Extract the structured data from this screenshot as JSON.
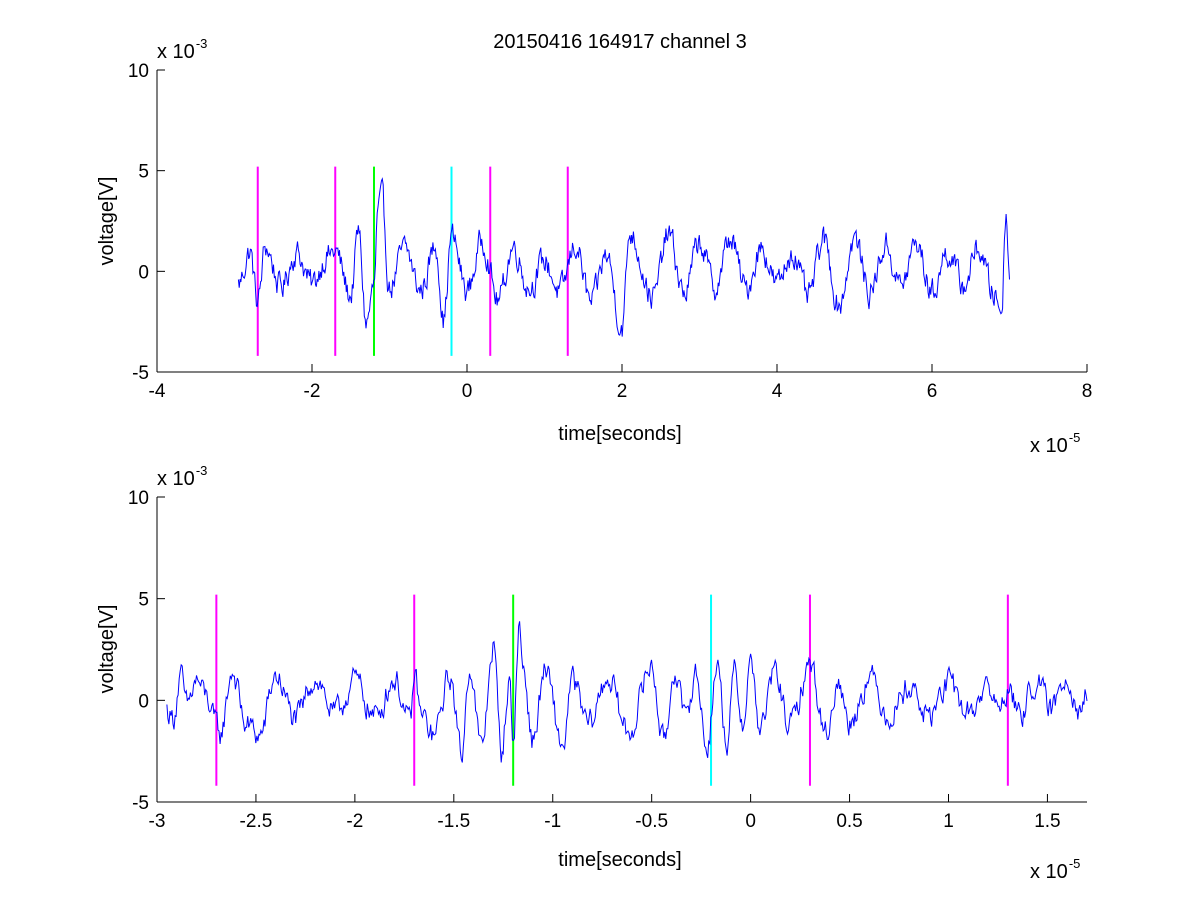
{
  "title": "20150416 164917 channel 3",
  "colors": {
    "signal": "#0000ff",
    "marker_magenta": "#ff00ff",
    "marker_green": "#00ff00",
    "marker_cyan": "#00ffff",
    "axes": "#000000",
    "background": "#ffffff"
  },
  "chart_data": [
    {
      "type": "line",
      "title": "20150416 164917 channel 3",
      "xlabel": "time[seconds]",
      "ylabel": "voltage[V]",
      "x_multiplier": "x 10",
      "x_exponent": "-5",
      "y_multiplier": "x 10",
      "y_exponent": "-3",
      "xlim": [
        -4,
        8
      ],
      "ylim": [
        -5,
        10
      ],
      "x_ticks": [
        -4,
        -2,
        0,
        2,
        4,
        6,
        8
      ],
      "x_tick_labels": [
        "-4",
        "-2",
        "0",
        "2",
        "4",
        "6",
        "8"
      ],
      "y_ticks": [
        -5,
        0,
        5,
        10
      ],
      "y_tick_labels": [
        "-5",
        "0",
        "5",
        "10"
      ],
      "series": [
        {
          "color": "#0000ff",
          "x_range": [
            -2.95,
            7.0
          ],
          "x": [
            -2.95,
            -2.8,
            -2.7,
            -2.6,
            -2.4,
            -2.2,
            -2.0,
            -1.8,
            -1.7,
            -1.5,
            -1.4,
            -1.3,
            -1.2,
            -1.15,
            -1.1,
            -1.0,
            -0.8,
            -0.6,
            -0.4,
            -0.3,
            -0.2,
            0.0,
            0.2,
            0.4,
            0.6,
            0.8,
            1.0,
            1.2,
            1.4,
            1.6,
            1.8,
            2.0,
            2.1,
            2.4,
            2.6,
            2.8,
            3.0,
            3.2,
            3.4,
            3.6,
            3.8,
            4.0,
            4.2,
            4.4,
            4.6,
            4.8,
            5.0,
            5.2,
            5.4,
            5.6,
            5.8,
            6.0,
            6.2,
            6.4,
            6.6,
            6.8,
            6.9,
            6.95,
            7.0
          ],
          "y": [
            -0.8,
            1.2,
            -1.9,
            1.5,
            -1.0,
            1.2,
            -0.8,
            1.0,
            1.2,
            -1.5,
            2.4,
            -3.2,
            -1.0,
            3.6,
            4.5,
            -1.0,
            1.4,
            -1.2,
            1.6,
            -3.0,
            2.2,
            -1.2,
            1.9,
            -1.8,
            1.5,
            -1.0,
            0.6,
            -1.3,
            1.6,
            -2.0,
            1.0,
            -3.5,
            2.4,
            -1.6,
            2.3,
            -1.4,
            1.8,
            -1.0,
            2.0,
            -1.1,
            1.5,
            -0.8,
            1.2,
            -1.6,
            1.9,
            -2.1,
            2.0,
            -1.3,
            1.6,
            -0.9,
            1.7,
            -1.3,
            1.2,
            -0.9,
            1.4,
            -1.4,
            -2.4,
            3.6,
            0.2
          ]
        }
      ],
      "markers": [
        {
          "x": -2.7,
          "color": "#ff00ff",
          "y_range": [
            -4.2,
            5.2
          ]
        },
        {
          "x": -1.7,
          "color": "#ff00ff",
          "y_range": [
            -4.2,
            5.2
          ]
        },
        {
          "x": -1.2,
          "color": "#00ff00",
          "y_range": [
            -4.2,
            5.2
          ]
        },
        {
          "x": -0.2,
          "color": "#00ffff",
          "y_range": [
            -4.2,
            5.2
          ]
        },
        {
          "x": 0.3,
          "color": "#ff00ff",
          "y_range": [
            -4.2,
            5.2
          ]
        },
        {
          "x": 1.3,
          "color": "#ff00ff",
          "y_range": [
            -4.2,
            5.2
          ]
        }
      ],
      "grid": false
    },
    {
      "type": "line",
      "title": "",
      "xlabel": "time[seconds]",
      "ylabel": "voltage[V]",
      "x_multiplier": "x 10",
      "x_exponent": "-5",
      "y_multiplier": "x 10",
      "y_exponent": "-3",
      "xlim": [
        -3.0,
        1.7
      ],
      "ylim": [
        -5,
        10
      ],
      "x_ticks": [
        -3,
        -2.5,
        -2,
        -1.5,
        -1,
        -0.5,
        0,
        0.5,
        1,
        1.5
      ],
      "x_tick_labels": [
        "-3",
        "-2.5",
        "-2",
        "-1.5",
        "-1",
        "-0.5",
        "0",
        "0.5",
        "1",
        "1.5"
      ],
      "y_ticks": [
        -5,
        0,
        5,
        10
      ],
      "y_tick_labels": [
        "-5",
        "0",
        "5",
        "10"
      ],
      "series": [
        {
          "color": "#0000ff",
          "x_range": [
            -2.95,
            1.7
          ],
          "x": [
            -2.95,
            -2.92,
            -2.88,
            -2.85,
            -2.8,
            -2.75,
            -2.7,
            -2.68,
            -2.62,
            -2.55,
            -2.48,
            -2.4,
            -2.3,
            -2.2,
            -2.1,
            -2.0,
            -1.9,
            -1.8,
            -1.72,
            -1.7,
            -1.66,
            -1.6,
            -1.52,
            -1.46,
            -1.42,
            -1.36,
            -1.3,
            -1.26,
            -1.22,
            -1.2,
            -1.17,
            -1.15,
            -1.1,
            -1.04,
            -0.95,
            -0.9,
            -0.82,
            -0.72,
            -0.62,
            -0.5,
            -0.44,
            -0.38,
            -0.33,
            -0.28,
            -0.22,
            -0.17,
            -0.12,
            -0.08,
            -0.04,
            0.0,
            0.05,
            0.12,
            0.2,
            0.3,
            0.38,
            0.44,
            0.5,
            0.6,
            0.7,
            0.8,
            0.9,
            1.0,
            1.1,
            1.2,
            1.25,
            1.3,
            1.36,
            1.44,
            1.52,
            1.6,
            1.66,
            1.7
          ],
          "y": [
            -0.6,
            -1.1,
            1.4,
            -0.4,
            1.2,
            0.2,
            -1.6,
            -2.1,
            1.8,
            -1.5,
            -2.2,
            1.5,
            -1.2,
            1.4,
            -0.9,
            1.2,
            -1.0,
            1.3,
            -1.5,
            1.5,
            -1.1,
            -2.2,
            1.5,
            -3.3,
            2.2,
            -3.0,
            3.4,
            -3.2,
            1.2,
            -2.5,
            4.6,
            2.0,
            -2.5,
            1.8,
            -2.8,
            1.1,
            -1.5,
            1.4,
            -2.0,
            2.1,
            -2.6,
            2.0,
            -1.4,
            1.7,
            -2.8,
            2.2,
            -2.5,
            1.6,
            -1.3,
            2.3,
            -1.8,
            1.7,
            -1.6,
            2.2,
            -2.0,
            1.0,
            -1.3,
            1.4,
            -0.9,
            0.9,
            -1.0,
            1.0,
            -0.8,
            0.9,
            -0.7,
            0.8,
            -1.0,
            1.2,
            -0.6,
            1.6,
            -0.5,
            0.4
          ]
        }
      ],
      "markers": [
        {
          "x": -2.7,
          "color": "#ff00ff",
          "y_range": [
            -4.2,
            5.2
          ]
        },
        {
          "x": -1.7,
          "color": "#ff00ff",
          "y_range": [
            -4.2,
            5.2
          ]
        },
        {
          "x": -1.2,
          "color": "#00ff00",
          "y_range": [
            -4.2,
            5.2
          ]
        },
        {
          "x": -0.2,
          "color": "#00ffff",
          "y_range": [
            -4.2,
            5.2
          ]
        },
        {
          "x": 0.3,
          "color": "#ff00ff",
          "y_range": [
            -4.2,
            5.2
          ]
        },
        {
          "x": 1.3,
          "color": "#ff00ff",
          "y_range": [
            -4.2,
            5.2
          ]
        }
      ],
      "grid": false
    }
  ]
}
